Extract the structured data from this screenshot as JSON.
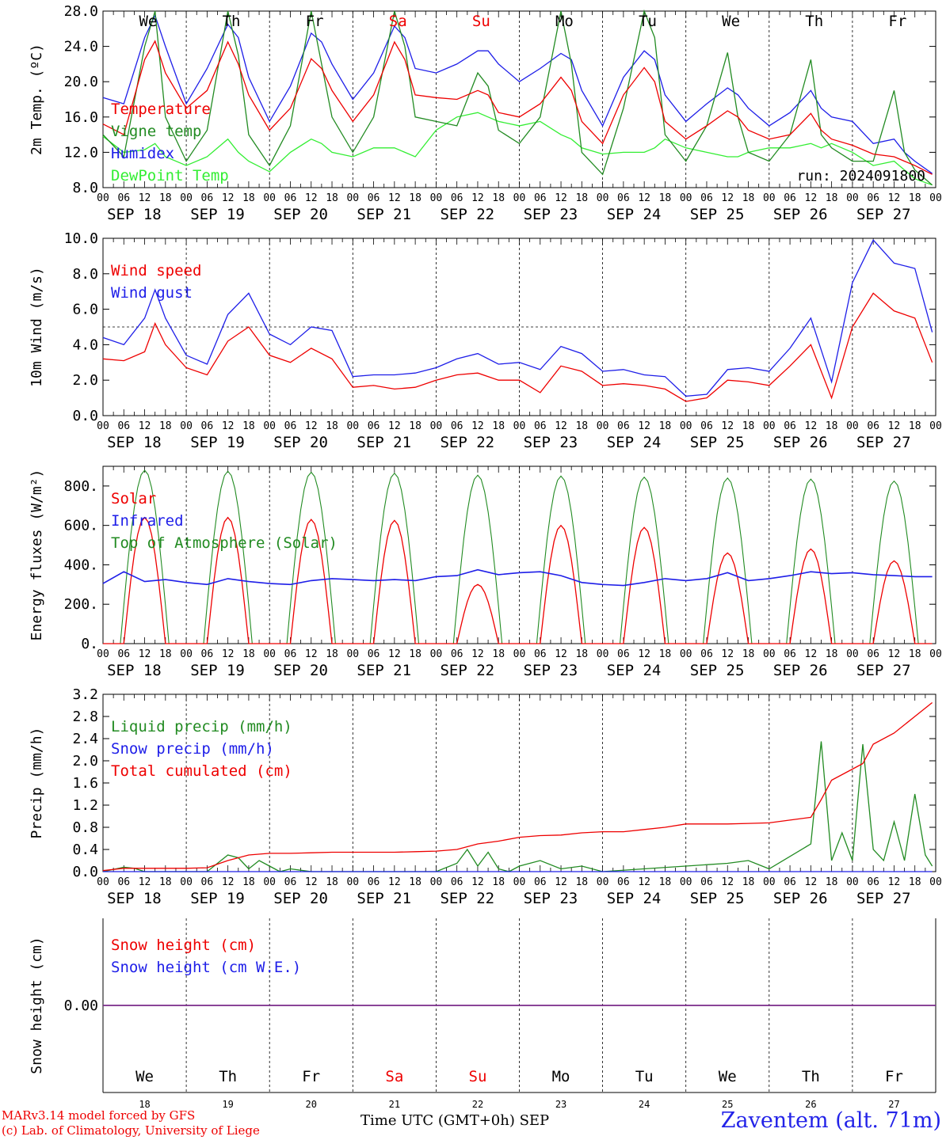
{
  "days": [
    "We",
    "Th",
    "Fr",
    "Sa",
    "Su",
    "Mo",
    "Tu",
    "We",
    "Th",
    "Fr"
  ],
  "weekend_days": [
    "Sa",
    "Su"
  ],
  "dates": [
    "SEP 18",
    "SEP 19",
    "SEP 20",
    "SEP 21",
    "SEP 22",
    "SEP 23",
    "SEP 24",
    "SEP 25",
    "SEP 26",
    "SEP 27"
  ],
  "day_numbers": [
    "18",
    "19",
    "20",
    "21",
    "22",
    "23",
    "24",
    "25",
    "26",
    "27"
  ],
  "hour_ticks": [
    "00",
    "06",
    "12",
    "18"
  ],
  "final_tick": "00",
  "footer": {
    "model_line1": "MARv3.14 model forced by GFS",
    "model_line2": "(c) Lab. of Climatology, University of Liege",
    "xlabel": "Time UTC (GMT+0h) SEP",
    "station": "Zaventem (alt. 71m)"
  },
  "chart_data": [
    {
      "type": "line",
      "ylabel": "2m Temp. (ºC)",
      "ylim": [
        8.0,
        28.0
      ],
      "yticks": [
        "8.0",
        "12.0",
        "16.0",
        "20.0",
        "24.0",
        "28.0"
      ],
      "annotation": "run: 2024091800",
      "grid": "vertical dashed at day boundaries",
      "x_hours": [
        0,
        6,
        12,
        15,
        18,
        24,
        30,
        36,
        39,
        42,
        48,
        54,
        60,
        63,
        66,
        72,
        78,
        84,
        87,
        90,
        96,
        102,
        108,
        111,
        114,
        120,
        126,
        132,
        135,
        138,
        144,
        150,
        156,
        159,
        162,
        168,
        174,
        180,
        183,
        186,
        192,
        198,
        204,
        207,
        210,
        216,
        222,
        228,
        231,
        234,
        239
      ],
      "series": [
        {
          "name": "Temperature",
          "color": "#ee0000",
          "values": [
            15.2,
            14.0,
            22.5,
            24.6,
            21.0,
            17.0,
            19.0,
            24.5,
            22.0,
            18.5,
            14.5,
            17.0,
            22.6,
            21.5,
            19.0,
            15.5,
            18.5,
            24.5,
            22.5,
            18.5,
            18.2,
            18.0,
            19.0,
            18.5,
            16.5,
            16.0,
            17.5,
            20.5,
            19.0,
            15.5,
            13.0,
            18.5,
            21.6,
            20.0,
            15.5,
            13.5,
            15.0,
            16.7,
            16.0,
            14.5,
            13.5,
            14.0,
            16.4,
            14.5,
            13.5,
            12.8,
            11.8,
            11.5,
            11.0,
            10.5,
            9.5
          ]
        },
        {
          "name": "Vigne temp",
          "color": "#228b22",
          "values": [
            14.0,
            11.5,
            24.0,
            28.0,
            16.0,
            11.0,
            14.5,
            28.0,
            23.0,
            14.0,
            10.5,
            15.0,
            28.0,
            22.0,
            16.0,
            12.0,
            16.0,
            28.0,
            24.0,
            16.0,
            15.5,
            15.0,
            21.0,
            19.5,
            14.5,
            13.0,
            16.0,
            28.0,
            22.0,
            12.0,
            9.5,
            17.0,
            28.0,
            25.0,
            14.0,
            11.0,
            15.0,
            23.3,
            16.0,
            12.0,
            11.0,
            14.0,
            22.5,
            14.0,
            12.5,
            11.0,
            11.0,
            19.0,
            12.0,
            10.0,
            8.3
          ]
        },
        {
          "name": "Humidex",
          "color": "#1e1ee8",
          "values": [
            18.2,
            17.5,
            25.0,
            27.5,
            24.0,
            17.5,
            21.5,
            26.5,
            25.0,
            20.5,
            15.5,
            19.5,
            25.5,
            24.5,
            22.0,
            18.0,
            21.0,
            26.3,
            25.0,
            21.5,
            21.0,
            22.0,
            23.5,
            23.5,
            22.0,
            20.0,
            21.5,
            23.2,
            22.5,
            19.0,
            15.0,
            20.5,
            23.5,
            22.5,
            18.5,
            15.5,
            17.5,
            19.3,
            18.5,
            17.0,
            15.0,
            16.5,
            19.0,
            17.0,
            16.0,
            15.5,
            13.0,
            13.5,
            12.0,
            11.0,
            9.6
          ]
        },
        {
          "name": "DewPoint Temp",
          "color": "#33ee33",
          "values": [
            13.8,
            12.0,
            12.3,
            13.0,
            11.5,
            10.5,
            11.5,
            13.5,
            12.0,
            11.0,
            9.8,
            12.0,
            13.5,
            13.0,
            12.0,
            11.5,
            12.5,
            12.5,
            12.0,
            11.5,
            14.5,
            16.0,
            16.5,
            16.0,
            15.5,
            15.0,
            15.5,
            14.0,
            13.5,
            12.5,
            11.8,
            12.0,
            12.0,
            12.5,
            13.5,
            12.5,
            12.0,
            11.5,
            11.5,
            12.0,
            12.5,
            12.5,
            13.0,
            12.5,
            13.0,
            12.0,
            10.5,
            11.0,
            10.0,
            9.0,
            8.3
          ]
        }
      ]
    },
    {
      "type": "line",
      "ylabel": "10m Wind (m/s)",
      "ylim": [
        0.0,
        10.0
      ],
      "yticks": [
        "0.0",
        "2.0",
        "4.0",
        "6.0",
        "8.0",
        "10.0"
      ],
      "reference_line": 5.0,
      "x_hours": [
        0,
        6,
        12,
        15,
        18,
        24,
        30,
        36,
        42,
        48,
        54,
        60,
        66,
        72,
        78,
        84,
        90,
        96,
        102,
        108,
        114,
        120,
        126,
        132,
        138,
        144,
        150,
        156,
        162,
        168,
        174,
        180,
        186,
        192,
        198,
        204,
        210,
        216,
        222,
        228,
        234,
        239
      ],
      "series": [
        {
          "name": "Wind speed",
          "color": "#ee0000",
          "values": [
            3.2,
            3.1,
            3.6,
            5.2,
            4.0,
            2.7,
            2.3,
            4.2,
            5.0,
            3.4,
            3.0,
            3.8,
            3.2,
            1.6,
            1.7,
            1.5,
            1.6,
            2.0,
            2.3,
            2.4,
            2.0,
            2.0,
            1.3,
            2.8,
            2.5,
            1.7,
            1.8,
            1.7,
            1.5,
            0.8,
            1.0,
            2.0,
            1.9,
            1.7,
            2.8,
            4.0,
            1.0,
            5.0,
            6.9,
            5.9,
            5.5,
            3.0
          ]
        },
        {
          "name": "Wind gust",
          "color": "#1e1ee8",
          "values": [
            4.4,
            4.0,
            5.5,
            7.1,
            5.5,
            3.4,
            2.9,
            5.7,
            6.9,
            4.6,
            4.0,
            5.0,
            4.8,
            2.2,
            2.3,
            2.3,
            2.4,
            2.7,
            3.2,
            3.5,
            2.9,
            3.0,
            2.6,
            3.9,
            3.5,
            2.5,
            2.6,
            2.3,
            2.2,
            1.1,
            1.2,
            2.6,
            2.7,
            2.5,
            3.8,
            5.5,
            1.9,
            7.5,
            9.9,
            8.6,
            8.3,
            4.7
          ]
        }
      ]
    },
    {
      "type": "line",
      "ylabel": "Energy fluxes (W/m²)",
      "ylim": [
        0,
        900
      ],
      "yticks": [
        "0.",
        "200.",
        "400.",
        "600.",
        "800."
      ],
      "series": [
        {
          "name": "Solar",
          "color": "#ee0000",
          "peaks": [
            640,
            640,
            630,
            625,
            300,
            600,
            590,
            460,
            480,
            420
          ]
        },
        {
          "name": "Infrared",
          "color": "#1e1ee8",
          "x_hours": [
            0,
            6,
            12,
            18,
            24,
            30,
            36,
            42,
            48,
            54,
            60,
            66,
            72,
            78,
            84,
            90,
            96,
            102,
            108,
            114,
            120,
            126,
            132,
            138,
            144,
            150,
            156,
            162,
            168,
            174,
            180,
            186,
            192,
            198,
            204,
            210,
            216,
            222,
            228,
            234,
            239
          ],
          "values": [
            305,
            365,
            315,
            325,
            310,
            300,
            330,
            315,
            305,
            300,
            320,
            330,
            325,
            320,
            325,
            320,
            340,
            345,
            375,
            350,
            360,
            365,
            345,
            310,
            300,
            295,
            310,
            330,
            320,
            330,
            360,
            320,
            330,
            345,
            365,
            355,
            360,
            350,
            345,
            340,
            340
          ]
        },
        {
          "name": "Top of Atmosphere (Solar)",
          "color": "#228b22",
          "peaks": [
            880,
            875,
            870,
            865,
            855,
            850,
            845,
            840,
            835,
            825
          ]
        }
      ]
    },
    {
      "type": "line",
      "ylabel": "Precip (mm/h)",
      "ylim": [
        0.0,
        3.2
      ],
      "yticks": [
        "0.0",
        "0.4",
        "0.8",
        "1.2",
        "1.6",
        "2.0",
        "2.4",
        "2.8",
        "3.2"
      ],
      "series": [
        {
          "name": "Liquid precip (mm/h)",
          "color": "#228b22",
          "x_hours": [
            0,
            6,
            9,
            12,
            18,
            30,
            36,
            39,
            42,
            45,
            48,
            51,
            54,
            60,
            96,
            102,
            105,
            108,
            111,
            114,
            117,
            120,
            126,
            132,
            138,
            144,
            180,
            186,
            192,
            204,
            207,
            210,
            213,
            216,
            219,
            222,
            225,
            228,
            231,
            234,
            237,
            239
          ],
          "values": [
            0,
            0.08,
            0.06,
            0,
            0,
            0,
            0.3,
            0.25,
            0.05,
            0.2,
            0.1,
            0,
            0.05,
            0,
            0,
            0.15,
            0.4,
            0.1,
            0.35,
            0.05,
            0,
            0.1,
            0.2,
            0.05,
            0.1,
            0,
            0.15,
            0.2,
            0.05,
            0.5,
            2.35,
            0.2,
            0.7,
            0.2,
            2.3,
            0.4,
            0.2,
            0.9,
            0.2,
            1.4,
            0.3,
            0.1
          ]
        },
        {
          "name": "Snow precip (mm/h)",
          "color": "#1e1ee8",
          "x_hours": [
            0,
            239
          ],
          "values": [
            0,
            0
          ]
        },
        {
          "name": "Total cumulated (cm)",
          "color": "#ee0000",
          "x_hours": [
            0,
            6,
            12,
            18,
            24,
            30,
            36,
            42,
            48,
            54,
            60,
            66,
            72,
            78,
            84,
            90,
            96,
            102,
            108,
            114,
            120,
            126,
            132,
            138,
            144,
            150,
            156,
            162,
            168,
            174,
            180,
            186,
            192,
            198,
            204,
            207,
            210,
            216,
            219,
            222,
            228,
            234,
            239
          ],
          "values": [
            0.02,
            0.06,
            0.06,
            0.06,
            0.06,
            0.07,
            0.2,
            0.3,
            0.33,
            0.33,
            0.34,
            0.35,
            0.35,
            0.35,
            0.35,
            0.36,
            0.37,
            0.4,
            0.5,
            0.55,
            0.62,
            0.65,
            0.66,
            0.7,
            0.72,
            0.72,
            0.76,
            0.8,
            0.86,
            0.86,
            0.86,
            0.87,
            0.88,
            0.93,
            0.98,
            1.3,
            1.65,
            1.85,
            1.95,
            2.3,
            2.5,
            2.8,
            3.05
          ]
        }
      ]
    },
    {
      "type": "line",
      "ylabel": "Snow height (cm)",
      "yticks": [
        "0.00"
      ],
      "series": [
        {
          "name": "Snow height (cm)",
          "color": "#ee0000",
          "values": [
            0,
            0
          ]
        },
        {
          "name": "Snow height (cm W.E.)",
          "color": "#1e1ee8",
          "values": [
            0,
            0
          ]
        }
      ]
    }
  ]
}
